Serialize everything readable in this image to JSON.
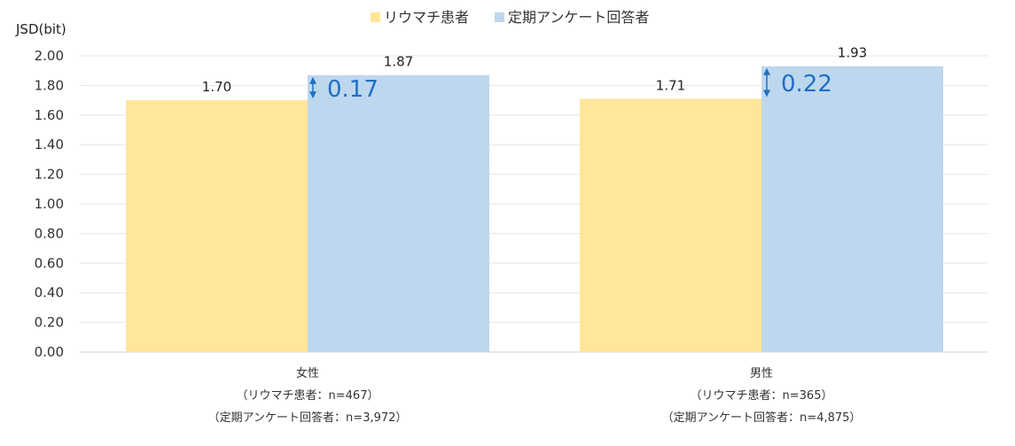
{
  "chart_data": {
    "type": "bar",
    "ylabel": "JSD(bit)",
    "ylim": [
      0,
      2
    ],
    "yticks": [
      "0.00",
      "0.20",
      "0.40",
      "0.60",
      "0.80",
      "1.00",
      "1.20",
      "1.40",
      "1.60",
      "1.80",
      "2.00"
    ],
    "grid": true,
    "legend_position": "top",
    "categories": [
      [
        "女性",
        "（リウマチ患者：n=467）",
        "（定期アンケート回答者：n=3,972）"
      ],
      [
        "男性",
        "（リウマチ患者：n=365）",
        "（定期アンケート回答者：n=4,875）"
      ]
    ],
    "series": [
      {
        "name": "リウマチ患者",
        "color": "#ffe699",
        "values": [
          1.7,
          1.71
        ],
        "labels": [
          "1.70",
          "1.71"
        ]
      },
      {
        "name": "定期アンケート回答者",
        "color": "#bdd7ee",
        "values": [
          1.87,
          1.93
        ],
        "labels": [
          "1.87",
          "1.93"
        ]
      }
    ],
    "differences": [
      {
        "label": "0.17",
        "from": 1.7,
        "to": 1.87
      },
      {
        "label": "0.22",
        "from": 1.71,
        "to": 1.93
      }
    ],
    "accent_color": "#1f6fc5"
  }
}
